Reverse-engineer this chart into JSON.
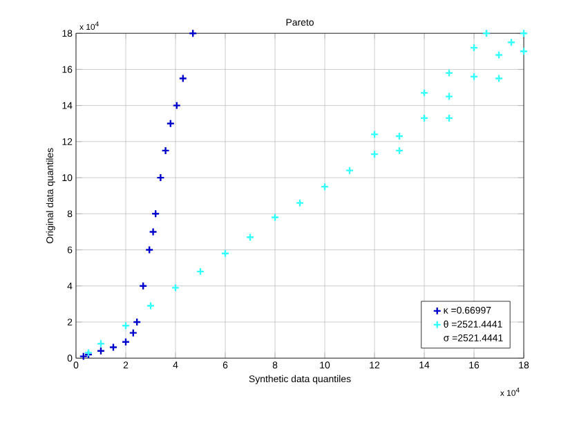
{
  "chart_data": {
    "type": "scatter",
    "title": "Pareto",
    "xlabel": "Synthetic data quantiles",
    "ylabel": "Original data quantiles",
    "annotations": [
      "x 10$^{4}$",
      "x 10$^{4}$",
      "σ =2521.4441"
    ],
    "xlim": [
      0,
      18
    ],
    "ylim": [
      0,
      18
    ],
    "xticks": [
      0,
      2,
      4,
      6,
      8,
      10,
      12,
      14,
      16,
      18
    ],
    "yticks": [
      0,
      2,
      4,
      6,
      8,
      10,
      12,
      14,
      16,
      18
    ],
    "grid": true,
    "legend": "bottom right",
    "marker": "cross",
    "series": [
      {
        "name": "κ =0.66997",
        "color": "#0000cc",
        "x": [
          0.3,
          0.5,
          1,
          1.5,
          2,
          2.3,
          2.45,
          2.7,
          2.95,
          3.1,
          3.2,
          3.4,
          3.6,
          3.8,
          4.05,
          4.3,
          4.7
        ],
        "values": [
          0.1,
          0.2,
          0.4,
          0.6,
          0.9,
          1.4,
          2,
          4,
          6,
          7,
          8,
          10,
          11.5,
          13,
          14,
          15.5,
          18
        ]
      },
      {
        "name": "θ =2521.4441",
        "color": "#33ffff",
        "x": [
          0.5,
          1,
          2,
          3,
          4,
          5,
          6,
          7,
          8,
          9,
          10,
          11,
          12,
          13,
          14,
          15,
          16,
          17,
          17.5,
          12,
          14,
          15,
          16,
          16.5,
          18,
          13,
          15,
          17,
          18
        ],
        "values": [
          0.3,
          0.8,
          1.8,
          2.9,
          3.9,
          4.8,
          5.8,
          6.7,
          7.8,
          8.6,
          9.5,
          10.4,
          11.3,
          12.3,
          13.3,
          14.5,
          15.6,
          16.8,
          17.5,
          12.4,
          14.7,
          15.8,
          17.2,
          18,
          18,
          11.5,
          13.3,
          15.5,
          17
        ]
      }
    ]
  }
}
